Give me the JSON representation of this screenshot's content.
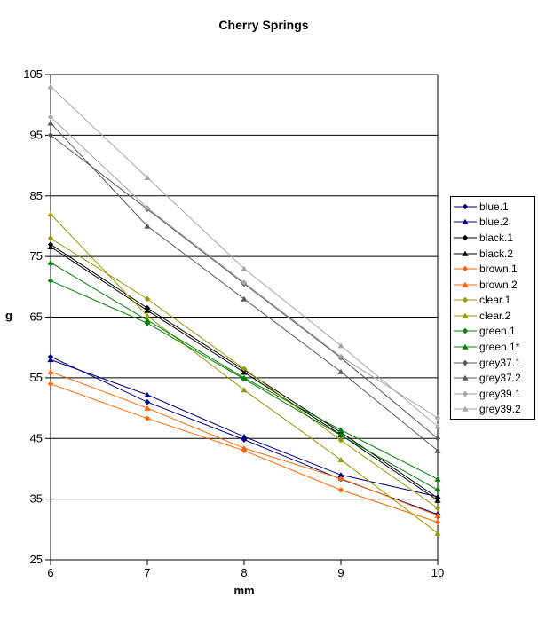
{
  "chart_data": {
    "type": "line",
    "title": "Cherry Springs",
    "xlabel": "mm",
    "ylabel": "g",
    "x": [
      6,
      7,
      8,
      9,
      10
    ],
    "xlim": [
      6,
      10
    ],
    "ylim": [
      25,
      105
    ],
    "ytick_step": 10,
    "xtick_labels": [
      "6",
      "7",
      "8",
      "9",
      "10"
    ],
    "ytick_labels": [
      "25",
      "35",
      "45",
      "55",
      "65",
      "75",
      "85",
      "95",
      "105"
    ],
    "grid": "horizontal-on",
    "legend_position": "right",
    "axis_color": "#000000",
    "background_color": "#ffffff",
    "series": [
      {
        "name": "blue.1",
        "color": "#000080",
        "marker": "diamond",
        "values": [
          58.5,
          51.0,
          44.8,
          38.3,
          32.5
        ]
      },
      {
        "name": "blue.2",
        "color": "#000080",
        "marker": "triangle",
        "values": [
          58.0,
          52.2,
          45.3,
          39.0,
          35.4
        ]
      },
      {
        "name": "black.1",
        "color": "#000000",
        "marker": "diamond",
        "values": [
          77.0,
          66.5,
          56.3,
          46.0,
          35.2
        ]
      },
      {
        "name": "black.2",
        "color": "#000000",
        "marker": "triangle",
        "values": [
          76.6,
          66.1,
          55.9,
          45.6,
          34.8
        ]
      },
      {
        "name": "brown.1",
        "color": "#ff6600",
        "marker": "diamond",
        "values": [
          54.0,
          48.3,
          43.0,
          36.5,
          31.2
        ]
      },
      {
        "name": "brown.2",
        "color": "#ff6600",
        "marker": "triangle",
        "values": [
          56.0,
          50.0,
          43.4,
          38.4,
          32.3
        ]
      },
      {
        "name": "clear.1",
        "color": "#999900",
        "marker": "diamond",
        "values": [
          78.0,
          68.0,
          56.5,
          44.7,
          33.5
        ]
      },
      {
        "name": "clear.2",
        "color": "#999900",
        "marker": "triangle",
        "values": [
          82.0,
          65.2,
          53.0,
          41.5,
          29.4
        ]
      },
      {
        "name": "green.1",
        "color": "#008000",
        "marker": "diamond",
        "values": [
          71.0,
          64.0,
          54.8,
          45.5,
          36.5
        ]
      },
      {
        "name": "green.1*",
        "color": "#008000",
        "marker": "triangle",
        "values": [
          74.0,
          64.5,
          55.0,
          46.4,
          38.3
        ]
      },
      {
        "name": "grey37.1",
        "color": "#595959",
        "marker": "diamond",
        "values": [
          95.0,
          82.8,
          70.5,
          58.3,
          45.0
        ]
      },
      {
        "name": "grey37.2",
        "color": "#595959",
        "marker": "triangle",
        "values": [
          97.0,
          80.0,
          68.0,
          56.0,
          43.0
        ]
      },
      {
        "name": "grey39.1",
        "color": "#a6a6a6",
        "marker": "diamond",
        "values": [
          98.0,
          83.0,
          70.7,
          58.5,
          48.4
        ]
      },
      {
        "name": "grey39.2",
        "color": "#a6a6a6",
        "marker": "triangle",
        "values": [
          103.0,
          88.0,
          73.0,
          60.3,
          47.0
        ]
      }
    ]
  }
}
